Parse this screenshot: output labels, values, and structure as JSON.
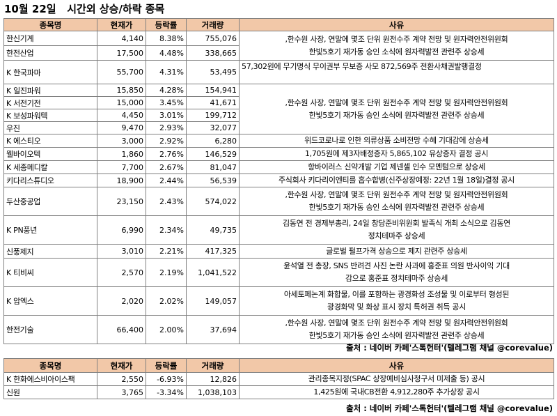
{
  "title": "10월 22일   시간외 상승/하락 종목",
  "headers": {
    "name": "종목명",
    "price": "현재가",
    "change": "등락률",
    "volume": "거래량",
    "reason": "사유"
  },
  "table1": {
    "rows": [
      {
        "name": "한신기계",
        "price": "4,140",
        "change": "8.38%",
        "volume": "755,076"
      },
      {
        "name": "한전산업",
        "price": "17,500",
        "change": "4.48%",
        "volume": "338,665"
      },
      {
        "name": "K 한국파마",
        "price": "55,700",
        "change": "4.31%",
        "volume": "53,495"
      },
      {
        "name": "K 일진파워",
        "price": "15,850",
        "change": "4.28%",
        "volume": "154,941"
      },
      {
        "name": "K 서전기전",
        "price": "15,000",
        "change": "3.45%",
        "volume": "41,671"
      },
      {
        "name": "K 보성파워텍",
        "price": "4,450",
        "change": "3.01%",
        "volume": "199,712"
      },
      {
        "name": "우진",
        "price": "9,470",
        "change": "2.93%",
        "volume": "32,077"
      },
      {
        "name": "K 에스티오",
        "price": "3,000",
        "change": "2.92%",
        "volume": "6,280"
      },
      {
        "name": "웰바이오텍",
        "price": "1,860",
        "change": "2.76%",
        "volume": "146,529"
      },
      {
        "name": "K 세종메디칼",
        "price": "7,700",
        "change": "2.67%",
        "volume": "81,047"
      },
      {
        "name": "키다리스튜디오",
        "price": "18,900",
        "change": "2.44%",
        "volume": "56,539"
      },
      {
        "name": "두산중공업",
        "price": "23,150",
        "change": "2.43%",
        "volume": "574,022"
      },
      {
        "name": "K PN풍년",
        "price": "6,990",
        "change": "2.34%",
        "volume": "49,735"
      },
      {
        "name": "신풍제지",
        "price": "3,010",
        "change": "2.21%",
        "volume": "417,325"
      },
      {
        "name": "K 티비씨",
        "price": "2,570",
        "change": "2.19%",
        "volume": "1,041,522"
      },
      {
        "name": "K 압엑스",
        "price": "2,020",
        "change": "2.02%",
        "volume": "149,057"
      },
      {
        "name": "한전기술",
        "price": "66,400",
        "change": "2.00%",
        "volume": "37,694"
      }
    ],
    "reasons": {
      "r1a": ",한수원 사장, 연말에 몇조 단위 원전수주 계약 전망 및 원자력안전위원회",
      "r1b": "한빛5호기 재가동 승인 소식에 원자력발전 관련주 상승세",
      "r3": "57,302원에 무기명식 무이권부 무보증 사모 872,569주 전환사채권발행결정",
      "r5a": ",한수원 사장, 연말에 몇조 단위 원전수주 계약 전망 및 원자력안전위원회",
      "r5b": "한빛5호기 재가동 승인 소식에 원자력발전 관련주 상승세",
      "r8": "위드코로나로 인한 의류상품 소비전망 수혜 기대감에 상승세",
      "r9": "1,705원에 제3자배정증자 5,865,102 유상증자 결정 공시",
      "r10": "항바이러스 신약개발 기업 제넨셀 인수 모멘텀으로 상승세",
      "r11": "주식회사 키다리이엔티를 흡수합병(신주상장예정: 22년 1월 18일)결정 공시",
      "r12a": ",한수원 사장, 연말에 몇조 단위 원전수주 계약 전망 및 원자력안전위원회",
      "r12b": "한빛5호기 재가동 승인 소식에 원자력발전 관련주 상승세",
      "r13a": "김동연 전 경제부총리, 24일 창당준비위원회 발족식 개최 소식으로 김동연",
      "r13b": "정치테마주 상승세",
      "r14": "글로벌 펄프가격 상승으로 제지 관련주 상승세",
      "r15a": "윤석열 전 총장, SNS 반려견 사진 논란 사과에 홍준표 의원 반사이익 기대",
      "r15b": "감으로 홍준표 정치테마주 상승세",
      "r16a": "아세토페논계 화합물, 이를 포함하는 광경화성 조성물 및 이로부터 형성된",
      "r16b": "광경화막 및 화상 표시 장치 특허권 취득 공시",
      "r17a": ",한수원 사장, 연말에 몇조 단위 원전수주 계약 전망 및 원자력안전위원회",
      "r17b": "한빛5호기 재가동 승인 소식에 원자력발전 관련주 상승세"
    }
  },
  "source": "출처 : 네이버 카페'스톡헌터'(텔레그램 채널 @corevalue)",
  "table2": {
    "rows": [
      {
        "name": "K 한화에스비아이스팩",
        "price": "2,550",
        "change": "-6.93%",
        "volume": "12,826",
        "reason": "관리종목지정(SPAC 상장예비심사청구서 미제출 등) 공시"
      },
      {
        "name": "신원",
        "price": "3,765",
        "change": "-3.34%",
        "volume": "1,038,103",
        "reason": "1,425원에 국내CB전환 4,912,280주 추가상장 공시"
      }
    ]
  }
}
